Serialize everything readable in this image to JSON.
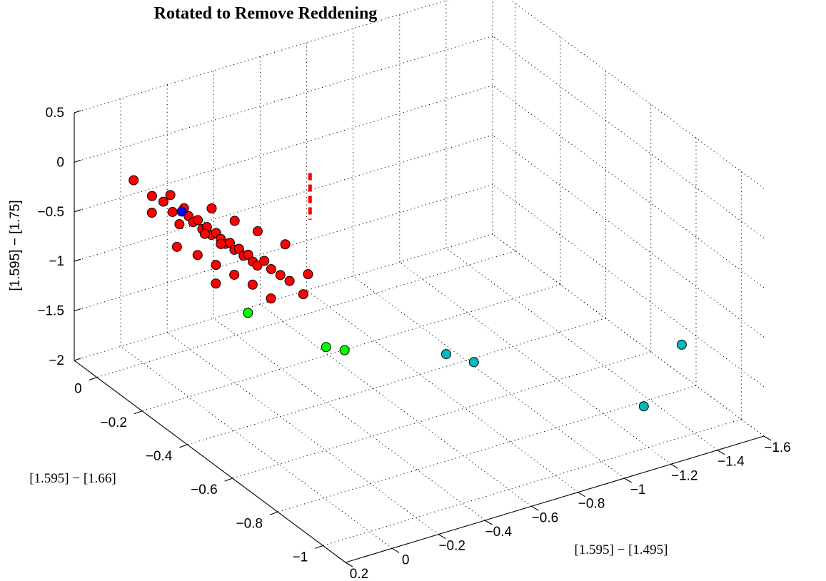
{
  "chart_data": {
    "type": "scatter",
    "title": "Rotated to Remove Reddening",
    "xlabel": "[1.595] − [1.495]",
    "ylabel": "[1.595] − [1.66]",
    "zlabel": "[1.595] − [1.75]",
    "xlim": [
      -1.6,
      0.2
    ],
    "ylim": [
      -1.1,
      0.1
    ],
    "zlim": [
      -2,
      0.5
    ],
    "x_ticks": [
      "−1.6",
      "−1.4",
      "−1.2",
      "−1",
      "−0.8",
      "−0.6",
      "−0.4",
      "−0.2",
      "0",
      "0.2"
    ],
    "x_tick_values": [
      -1.6,
      -1.4,
      -1.2,
      -1.0,
      -0.8,
      -0.6,
      -0.4,
      -0.2,
      0,
      0.2
    ],
    "y_ticks": [
      "0",
      "−0.2",
      "−0.4",
      "−0.6",
      "−0.8",
      "−1"
    ],
    "y_tick_values": [
      0,
      -0.2,
      -0.4,
      -0.6,
      -0.8,
      -1.0
    ],
    "z_ticks": [
      "0.5",
      "0",
      "−0.5",
      "−1",
      "−1.5",
      "−2"
    ],
    "z_tick_values": [
      0.5,
      0,
      -0.5,
      -1.0,
      -1.5,
      -2.0
    ],
    "grid": true,
    "legend": "none",
    "series": [
      {
        "color": "#ff0000",
        "points": [
          {
            "x": 0.1,
            "y": -0.06,
            "z": 0.02
          },
          {
            "x": 0.06,
            "y": -0.1,
            "z": -0.1
          },
          {
            "x": 0.04,
            "y": -0.13,
            "z": -0.12
          },
          {
            "x": 0.02,
            "y": -0.14,
            "z": -0.05
          },
          {
            "x": 0.03,
            "y": -0.16,
            "z": -0.18
          },
          {
            "x": 0.0,
            "y": -0.18,
            "z": -0.13
          },
          {
            "x": -0.01,
            "y": -0.19,
            "z": -0.2
          },
          {
            "x": -0.02,
            "y": -0.2,
            "z": -0.25
          },
          {
            "x": -0.03,
            "y": -0.21,
            "z": -0.22
          },
          {
            "x": -0.04,
            "y": -0.22,
            "z": -0.3
          },
          {
            "x": -0.05,
            "y": -0.23,
            "z": -0.27
          },
          {
            "x": -0.06,
            "y": -0.24,
            "z": -0.34
          },
          {
            "x": -0.07,
            "y": -0.25,
            "z": -0.31
          },
          {
            "x": -0.08,
            "y": -0.26,
            "z": -0.36
          },
          {
            "x": -0.09,
            "y": -0.27,
            "z": -0.4
          },
          {
            "x": -0.1,
            "y": -0.28,
            "z": -0.38
          },
          {
            "x": -0.11,
            "y": -0.29,
            "z": -0.44
          },
          {
            "x": -0.12,
            "y": -0.3,
            "z": -0.42
          },
          {
            "x": -0.13,
            "y": -0.31,
            "z": -0.48
          },
          {
            "x": -0.14,
            "y": -0.32,
            "z": -0.46
          },
          {
            "x": -0.15,
            "y": -0.33,
            "z": -0.52
          },
          {
            "x": -0.16,
            "y": -0.34,
            "z": -0.55
          },
          {
            "x": -0.18,
            "y": -0.35,
            "z": -0.5
          },
          {
            "x": -0.2,
            "y": -0.36,
            "z": -0.58
          },
          {
            "x": -0.22,
            "y": -0.38,
            "z": -0.62
          },
          {
            "x": -0.24,
            "y": -0.4,
            "z": -0.66
          },
          {
            "x": 0.05,
            "y": -0.2,
            "z": -0.45
          },
          {
            "x": 0.0,
            "y": -0.24,
            "z": -0.5
          },
          {
            "x": -0.04,
            "y": -0.28,
            "z": -0.56
          },
          {
            "x": -0.08,
            "y": -0.32,
            "z": -0.62
          },
          {
            "x": -0.12,
            "y": -0.36,
            "z": -0.68
          },
          {
            "x": -0.02,
            "y": -0.3,
            "z": -0.7
          },
          {
            "x": -0.16,
            "y": -0.4,
            "z": -0.78
          },
          {
            "x": -0.26,
            "y": -0.44,
            "z": -0.74
          },
          {
            "x": -0.08,
            "y": -0.22,
            "z": -0.12
          },
          {
            "x": -0.14,
            "y": -0.26,
            "z": -0.22
          },
          {
            "x": -0.2,
            "y": -0.3,
            "z": -0.3
          },
          {
            "x": -0.28,
            "y": -0.34,
            "z": -0.42
          },
          {
            "x": 0.08,
            "y": -0.12,
            "z": -0.22
          },
          {
            "x": 0.01,
            "y": -0.17,
            "z": -0.3
          },
          {
            "x": -0.06,
            "y": -0.21,
            "z": -0.38
          },
          {
            "x": -0.1,
            "y": -0.24,
            "z": -0.46
          },
          {
            "x": -0.3,
            "y": -0.42,
            "z": -0.6
          }
        ]
      },
      {
        "color": "#0000ff",
        "points": [
          {
            "x": 0.0,
            "y": -0.17,
            "z": -0.18
          }
        ]
      },
      {
        "color": "#00ff00",
        "points": [
          {
            "x": -0.1,
            "y": -0.36,
            "z": -0.95
          },
          {
            "x": -0.3,
            "y": -0.5,
            "z": -1.2
          },
          {
            "x": -0.36,
            "y": -0.52,
            "z": -1.24
          }
        ]
      },
      {
        "color": "#00bbbb",
        "points": [
          {
            "x": -0.7,
            "y": -0.62,
            "z": -1.35
          },
          {
            "x": -0.78,
            "y": -0.66,
            "z": -1.42
          },
          {
            "x": -1.48,
            "y": -0.86,
            "z": -1.4
          },
          {
            "x": -1.2,
            "y": -0.98,
            "z": -1.62
          }
        ]
      }
    ],
    "reddening_vector": {
      "color": "#ff0000",
      "style": "dashed",
      "from": {
        "x": -0.62,
        "y": -0.1,
        "z": -0.35
      },
      "to": {
        "x": -0.62,
        "y": -0.1,
        "z": -0.82
      }
    }
  }
}
